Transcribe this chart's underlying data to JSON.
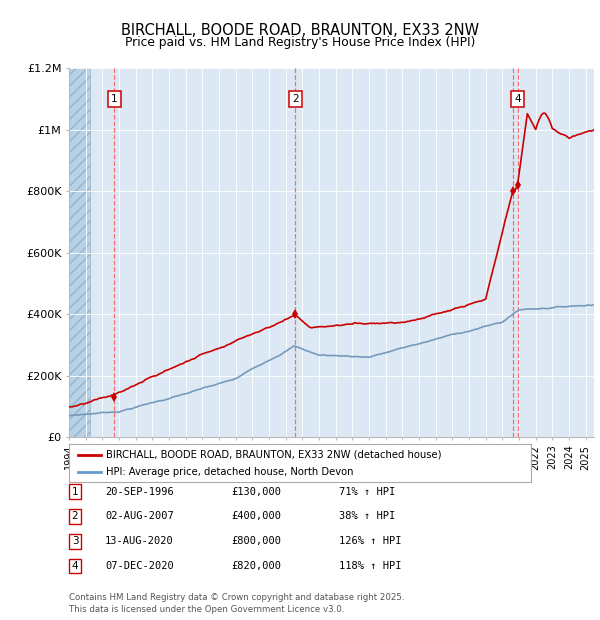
{
  "title": "BIRCHALL, BOODE ROAD, BRAUNTON, EX33 2NW",
  "subtitle": "Price paid vs. HM Land Registry's House Price Index (HPI)",
  "ylim": [
    0,
    1200000
  ],
  "xlim_start": 1994.0,
  "xlim_end": 2025.5,
  "background_color": "#ffffff",
  "plot_bg_color": "#dce9f5",
  "hatch_color": "#b0cce0",
  "grid_color": "#ffffff",
  "legend_entries": [
    "BIRCHALL, BOODE ROAD, BRAUNTON, EX33 2NW (detached house)",
    "HPI: Average price, detached house, North Devon"
  ],
  "legend_line_colors": [
    "#cc0000",
    "#6699cc"
  ],
  "transactions": [
    {
      "num": 1,
      "date": "20-SEP-1996",
      "price": 130000,
      "hpi_pct": "71%",
      "direction": "↑"
    },
    {
      "num": 2,
      "date": "02-AUG-2007",
      "price": 400000,
      "hpi_pct": "38%",
      "direction": "↑"
    },
    {
      "num": 3,
      "date": "13-AUG-2020",
      "price": 800000,
      "hpi_pct": "126%",
      "direction": "↑"
    },
    {
      "num": 4,
      "date": "07-DEC-2020",
      "price": 820000,
      "hpi_pct": "118%",
      "direction": "↑"
    }
  ],
  "transaction_years": [
    1996.72,
    2007.58,
    2020.62,
    2020.92
  ],
  "transaction_prices": [
    130000,
    400000,
    800000,
    820000
  ],
  "footer": "Contains HM Land Registry data © Crown copyright and database right 2025.\nThis data is licensed under the Open Government Licence v3.0.",
  "red_line_color": "#cc0000",
  "blue_line_color": "#7799bb",
  "vline_color": "#ff5555",
  "marker_box_color": "#cc0000",
  "hatch_end": 1995.25
}
